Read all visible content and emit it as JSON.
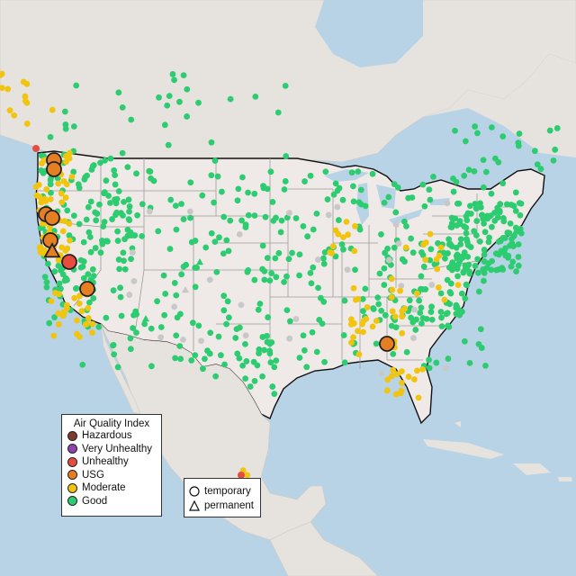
{
  "legend": {
    "title": "Air Quality Index",
    "categories": [
      {
        "label": "Hazardous",
        "color": "#7e3b2c"
      },
      {
        "label": "Very Unhealthy",
        "color": "#8e44ad"
      },
      {
        "label": "Unhealthy",
        "color": "#e74c3c"
      },
      {
        "label": "USG",
        "color": "#e67e22"
      },
      {
        "label": "Moderate",
        "color": "#f1c40f"
      },
      {
        "label": "Good",
        "color": "#2ecc71"
      }
    ]
  },
  "monitor_types": {
    "temporary_label": "temporary",
    "permanent_label": "permanent"
  },
  "colors": {
    "water": "#b8d3e6",
    "land": "#e8e4e0",
    "us_land": "#efeae8",
    "border": "#111111",
    "state_lines": "#9a9a9a",
    "no_data_marker": "#c8c8c8"
  }
}
